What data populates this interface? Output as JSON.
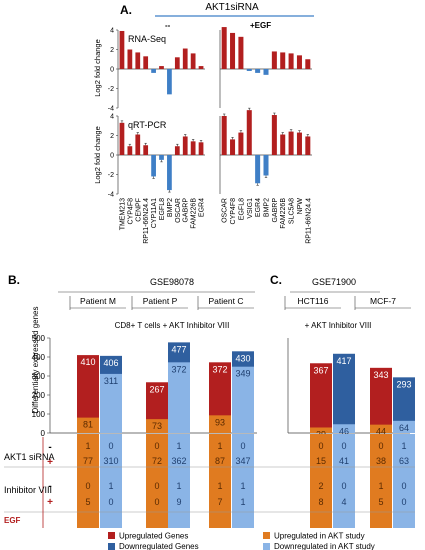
{
  "panel_labels": {
    "a": "A.",
    "b": "B.",
    "c": "C."
  },
  "header": {
    "siRNA": "AKT1siRNA",
    "minus": "--",
    "egf": "+EGF"
  },
  "ylabel_fold": "Log2 fold change",
  "method_labels": {
    "rnaseq": "RNA-Seq",
    "qpcr": "qRT-PCR"
  },
  "colors": {
    "up": "#b21f1f",
    "down": "#3f7fc6",
    "up_akt": "#e07b20",
    "down_akt": "#8ab4e6",
    "dark_blue": "#2f5f9f"
  },
  "chart_data": [
    {
      "type": "bar",
      "panel": "A-left",
      "categories": [
        "TMEM213",
        "CYP4F8",
        "CENPF",
        "RP11-66N24.4",
        "CYP11A1",
        "EGFL8",
        "BMP2",
        "OSCAR",
        "GABRP",
        "FAM226B",
        "EGR4"
      ],
      "ylim": [
        -4,
        4
      ],
      "yticks": [
        -4,
        -2,
        0,
        2,
        4
      ],
      "series": [
        {
          "name": "RNA-Seq",
          "values": [
            3.9,
            2.0,
            1.7,
            1.3,
            -0.4,
            0.3,
            -2.6,
            1.2,
            2.1,
            1.6,
            0.3
          ]
        },
        {
          "name": "qRT-PCR",
          "values": [
            3.3,
            0.9,
            2.1,
            1.0,
            -2.2,
            -0.5,
            -3.6,
            0.9,
            1.9,
            1.4,
            1.3
          ]
        }
      ]
    },
    {
      "type": "bar",
      "panel": "A-right",
      "categories": [
        "OSCAR",
        "CYP4F8",
        "EGFL8",
        "VSIG1",
        "EGR4",
        "BMP2",
        "GABRP",
        "FAM226B",
        "SLC5A8",
        "NPW",
        "RP11-66N24.4"
      ],
      "ylim": [
        -4,
        4
      ],
      "yticks": [
        -4,
        -2,
        0,
        2,
        4
      ],
      "series": [
        {
          "name": "RNA-Seq",
          "values": [
            4.3,
            3.7,
            3.3,
            -0.2,
            -0.4,
            -0.6,
            1.8,
            1.7,
            1.6,
            1.4,
            1.0
          ]
        },
        {
          "name": "qRT-PCR",
          "values": [
            4.0,
            1.6,
            2.3,
            4.6,
            -2.9,
            -2.1,
            4.1,
            2.1,
            2.4,
            2.3,
            1.9
          ]
        }
      ]
    },
    {
      "type": "bar",
      "panel": "B",
      "title": "GSE98078",
      "subtitle": "CD8+ T cells + AKT Inhibitor VIII",
      "ylabel": "Differentially expressed genes",
      "ylim": [
        0,
        500
      ],
      "yticks": [
        0,
        100,
        200,
        300,
        400,
        500
      ],
      "groups": [
        {
          "name": "Patient M",
          "up": 410,
          "down": 406,
          "up_akt": 81,
          "down_akt": 311
        },
        {
          "name": "Patient P",
          "up": 267,
          "down": 477,
          "up_akt": 73,
          "down_akt": 372
        },
        {
          "name": "Patient C",
          "up": 372,
          "down": 430,
          "up_akt": 93,
          "down_akt": 349
        }
      ],
      "table": [
        [
          "1",
          "0",
          "0",
          "1",
          "1",
          "0"
        ],
        [
          "77",
          "310",
          "72",
          "362",
          "87",
          "347"
        ],
        [
          "0",
          "1",
          "0",
          "1",
          "1",
          "1"
        ],
        [
          "5",
          "0",
          "0",
          "9",
          "7",
          "1"
        ]
      ]
    },
    {
      "type": "bar",
      "panel": "C",
      "title": "GSE71900",
      "subtitle": "+ AKT Inhibitor VIII",
      "ylim": [
        0,
        500
      ],
      "groups": [
        {
          "name": "HCT116",
          "up": 367,
          "down": 417,
          "up_akt": 29,
          "down_akt": 46
        },
        {
          "name": "MCF-7",
          "up": 343,
          "down": 293,
          "up_akt": 44,
          "down_akt": 64
        }
      ],
      "table": [
        [
          "0",
          "0",
          "0",
          "1"
        ],
        [
          "15",
          "41",
          "38",
          "63"
        ],
        [
          "2",
          "0",
          "1",
          "0"
        ],
        [
          "8",
          "4",
          "5",
          "0"
        ]
      ]
    }
  ],
  "row_labels": {
    "siRNA": "AKT1 siRNA",
    "inhibitor": "Inhibitor VIII",
    "egf": "EGF"
  },
  "signs": [
    "-",
    "+",
    "-",
    "+"
  ],
  "legend": {
    "up": "Upregulated Genes",
    "down": "Downregulated Genes",
    "up_akt": "Upregulated in AKT study",
    "down_akt": "Downregulated in AKT study"
  }
}
